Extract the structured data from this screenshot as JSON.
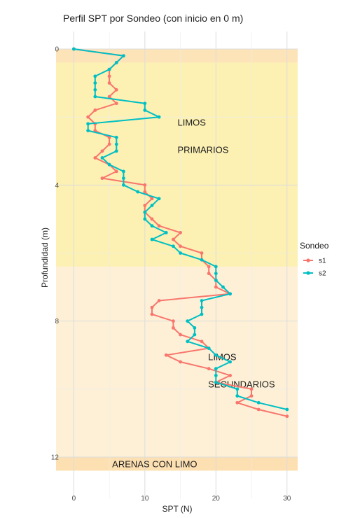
{
  "chart_data": {
    "type": "line",
    "title": "Perfil SPT por Sondeo (con inicio en 0 m)",
    "xlabel": "SPT (N)",
    "ylabel": "Profundidad (m)",
    "xlim": [
      -2.5,
      31.5
    ],
    "ylim": [
      0,
      12.4
    ],
    "y_reversed": true,
    "x_ticks": [
      0,
      10,
      20,
      30
    ],
    "y_ticks": [
      0,
      4,
      8,
      12
    ],
    "grid": true,
    "legend": {
      "title": "Sondeo",
      "position": "right"
    },
    "bands": [
      {
        "from": 0,
        "to": 0.4,
        "color": "#fde4b8"
      },
      {
        "from": 0.4,
        "to": 6.4,
        "color": "#fcf0b3"
      },
      {
        "from": 6.4,
        "to": 12.0,
        "color": "#fdf0d6"
      },
      {
        "from": 12.0,
        "to": 12.4,
        "color": "#fde0b2"
      }
    ],
    "annotations": [
      {
        "text": "LIMOS",
        "x": 14.6,
        "y": 2.15
      },
      {
        "text": "PRIMARIOS",
        "x": 14.6,
        "y": 2.95
      },
      {
        "text": "LIMOS",
        "x": 18.9,
        "y": 9.05
      },
      {
        "text": "SECUNDARIOS",
        "x": 18.9,
        "y": 9.85
      },
      {
        "text": "ARENAS CON LIMO",
        "x": 5.4,
        "y": 12.2
      }
    ],
    "series": [
      {
        "name": "s1",
        "color": "#f8766d",
        "x": [
          0,
          7,
          6,
          5,
          5,
          5,
          6,
          5,
          6,
          3,
          2,
          3,
          3,
          5,
          5,
          4,
          3,
          5,
          6,
          4,
          10,
          10,
          11,
          10,
          10,
          11,
          12,
          15,
          14,
          15,
          18,
          18,
          19,
          19,
          20,
          20,
          22,
          12,
          11,
          11,
          14,
          14,
          15,
          18,
          19,
          13,
          15,
          19,
          22,
          20,
          25,
          25,
          23,
          26,
          30
        ],
        "y": [
          0,
          0.2,
          0.4,
          0.6,
          0.8,
          1.0,
          1.2,
          1.4,
          1.6,
          1.8,
          2.0,
          2.2,
          2.4,
          2.6,
          2.8,
          3.0,
          3.2,
          3.4,
          3.6,
          3.8,
          4.0,
          4.2,
          4.4,
          4.6,
          4.8,
          5.0,
          5.2,
          5.4,
          5.6,
          5.8,
          6.0,
          6.2,
          6.4,
          6.6,
          6.8,
          7.0,
          7.2,
          7.4,
          7.6,
          7.8,
          8.0,
          8.2,
          8.4,
          8.6,
          8.8,
          9.0,
          9.2,
          9.4,
          9.6,
          9.8,
          10.0,
          10.2,
          10.4,
          10.6,
          10.8
        ]
      },
      {
        "name": "s2",
        "color": "#00bfc4",
        "x": [
          0,
          7,
          6,
          5,
          3,
          3,
          3,
          3,
          10,
          10,
          12,
          2,
          2,
          6,
          6,
          6,
          4,
          5,
          7,
          7,
          7,
          9,
          12,
          11,
          10,
          10,
          11,
          13,
          11,
          14,
          15,
          18,
          20,
          20,
          20,
          21,
          22,
          18,
          18,
          18,
          16,
          17,
          17,
          16,
          19,
          20,
          22,
          20,
          20,
          20,
          23,
          23,
          26,
          30
        ],
        "y": [
          0,
          0.2,
          0.4,
          0.6,
          0.8,
          1.0,
          1.2,
          1.4,
          1.6,
          1.8,
          2.0,
          2.2,
          2.4,
          2.6,
          2.8,
          3.0,
          3.2,
          3.4,
          3.6,
          3.8,
          4.0,
          4.2,
          4.4,
          4.6,
          4.8,
          5.0,
          5.2,
          5.4,
          5.6,
          5.8,
          6.0,
          6.2,
          6.4,
          6.6,
          6.8,
          7.0,
          7.2,
          7.4,
          7.6,
          7.8,
          8.0,
          8.2,
          8.4,
          8.6,
          8.8,
          9.0,
          9.2,
          9.4,
          9.6,
          9.8,
          10.0,
          10.2,
          10.4,
          10.6
        ]
      }
    ]
  }
}
